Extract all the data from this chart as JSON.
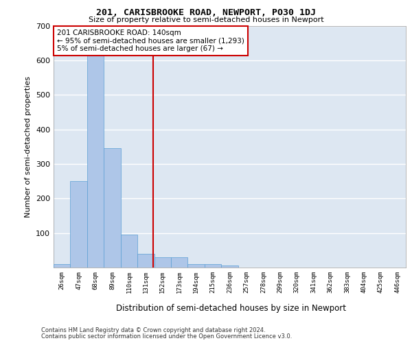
{
  "title": "201, CARISBROOKE ROAD, NEWPORT, PO30 1DJ",
  "subtitle": "Size of property relative to semi-detached houses in Newport",
  "xlabel": "Distribution of semi-detached houses by size in Newport",
  "ylabel": "Number of semi-detached properties",
  "bin_labels": [
    "26sqm",
    "47sqm",
    "68sqm",
    "89sqm",
    "110sqm",
    "131sqm",
    "152sqm",
    "173sqm",
    "194sqm",
    "215sqm",
    "236sqm",
    "257sqm",
    "278sqm",
    "299sqm",
    "320sqm",
    "341sqm",
    "362sqm",
    "383sqm",
    "404sqm",
    "425sqm",
    "446sqm"
  ],
  "bar_values": [
    10,
    250,
    630,
    345,
    95,
    40,
    30,
    30,
    10,
    10,
    5,
    0,
    0,
    0,
    0,
    0,
    0,
    0,
    0,
    0,
    0
  ],
  "bar_color": "#aec6e8",
  "bar_edge_color": "#5a9fd4",
  "background_color": "#dde7f2",
  "grid_color": "#ffffff",
  "property_label": "201 CARISBROOKE ROAD: 140sqm",
  "annotation_line1": "← 95% of semi-detached houses are smaller (1,293)",
  "annotation_line2": "5% of semi-detached houses are larger (67) →",
  "vline_color": "#cc0000",
  "annotation_box_color": "#ffffff",
  "annotation_box_edge": "#cc0000",
  "footer_line1": "Contains HM Land Registry data © Crown copyright and database right 2024.",
  "footer_line2": "Contains public sector information licensed under the Open Government Licence v3.0.",
  "ylim": [
    0,
    700
  ],
  "yticks": [
    0,
    100,
    200,
    300,
    400,
    500,
    600,
    700
  ],
  "vline_x": 5.43
}
